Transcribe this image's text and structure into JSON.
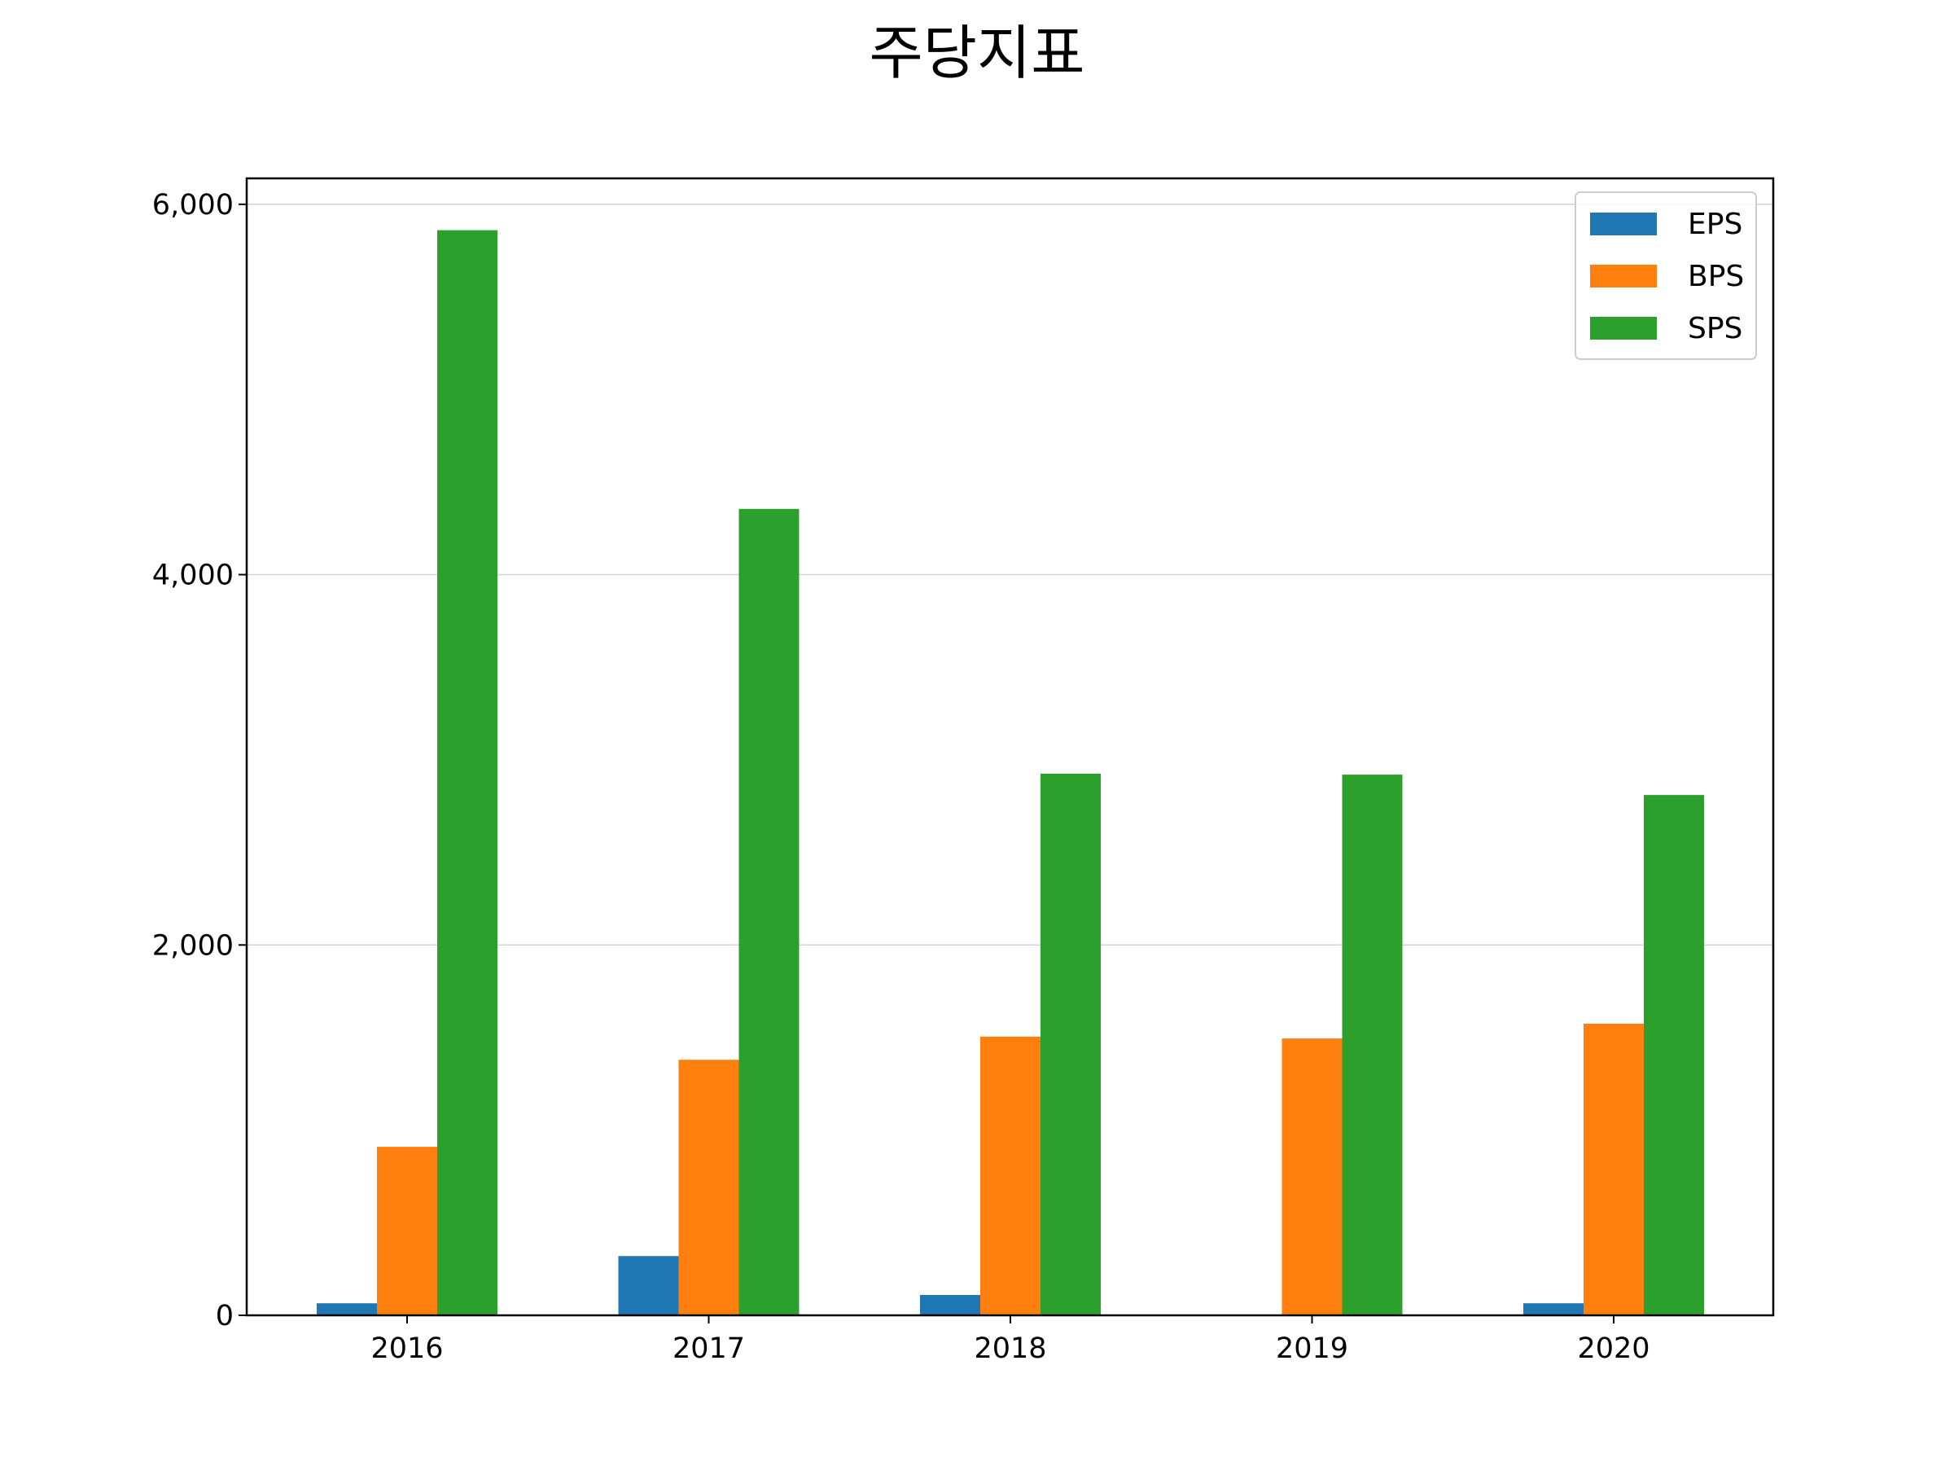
{
  "chart_data": {
    "type": "bar",
    "title": "주당지표",
    "xlabel": "",
    "ylabel": "",
    "categories": [
      "2016",
      "2017",
      "2018",
      "2019",
      "2020"
    ],
    "series": [
      {
        "name": "EPS",
        "color": "#1f77b4",
        "values": [
          65,
          320,
          110,
          0,
          65
        ]
      },
      {
        "name": "BPS",
        "color": "#ff7f0e",
        "values": [
          910,
          1380,
          1505,
          1495,
          1575
        ]
      },
      {
        "name": "SPS",
        "color": "#2ca02c",
        "values": [
          5860,
          4355,
          2925,
          2920,
          2810
        ]
      }
    ],
    "ylim": [
      0,
      6140
    ],
    "yticks": [
      0,
      2000,
      4000,
      6000
    ],
    "ytick_labels": [
      "0",
      "2,000",
      "4,000",
      "6,000"
    ],
    "grid": {
      "y": true,
      "x": false
    },
    "legend_position": "top-right"
  }
}
